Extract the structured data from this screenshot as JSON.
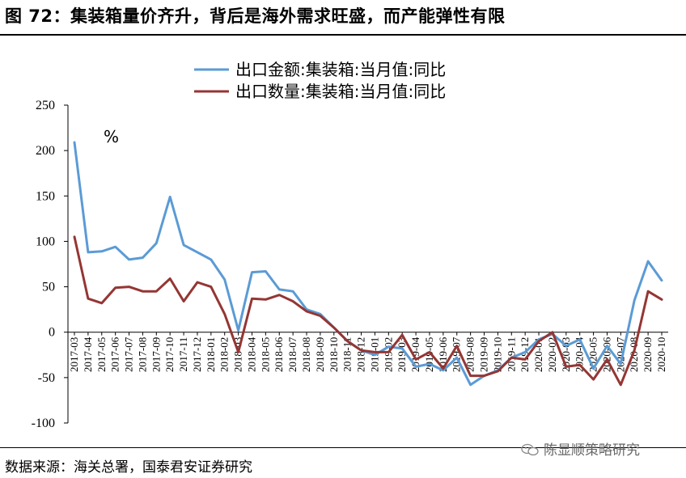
{
  "header": {
    "title": "图 72：集装箱量价齐升，背后是海外需求旺盛，而产能弹性有限"
  },
  "footer": {
    "source": "数据来源：海关总署，国泰君安证券研究",
    "watermark": "陈显顺策略研究"
  },
  "chart_data": {
    "type": "line",
    "unit_label": "%",
    "ylim": [
      -100,
      250
    ],
    "yticks": [
      250,
      200,
      150,
      100,
      50,
      0,
      -50,
      -100
    ],
    "grid": false,
    "legend_position": "top-center",
    "x": [
      "2017-03",
      "2017-04",
      "2017-05",
      "2017-06",
      "2017-07",
      "2017-08",
      "2017-09",
      "2017-10",
      "2017-11",
      "2017-12",
      "2018-01",
      "2018-02",
      "2018-03",
      "2018-04",
      "2018-05",
      "2018-06",
      "2018-07",
      "2018-08",
      "2018-09",
      "2018-10",
      "2018-11",
      "2018-12",
      "2019-01",
      "2019-02",
      "2019-03",
      "2019-04",
      "2019-05",
      "2019-06",
      "2019-07",
      "2019-08",
      "2019-09",
      "2019-10",
      "2019-11",
      "2019-12",
      "2020-01",
      "2020-02",
      "2020-03",
      "2020-04",
      "2020-05",
      "2020-06",
      "2020-07",
      "2020-08",
      "2020-09",
      "2020-10"
    ],
    "xtick_labels": [
      "2017-03",
      "2017-04",
      "2017-05",
      "2017-06",
      "2017-07",
      "2017-08",
      "2017-09",
      "2017-10",
      "2017-11",
      "2017-12",
      "2018-01",
      "2018-02",
      "2018-03",
      "2018-04",
      "2018-05",
      "2018-06",
      "2018-07",
      "2018-08",
      "2018-09",
      "2018-10",
      "2018-11",
      "2018-12",
      "2019-01",
      "2019-02",
      "2019-03",
      "2019-04",
      "2019-05",
      "2019-06",
      "2019-07",
      "2019-08",
      "2019-09",
      "2019-10",
      "2019-11",
      "2019-12",
      "2020-01",
      "2020-02",
      "2020-03",
      "2020-04",
      "2020-05",
      "2020-06",
      "2020-07",
      "2020-08",
      "2020-09",
      "2020-10"
    ],
    "series": [
      {
        "name": "出口金额:集装箱:当月值:同比",
        "color": "#5b9bd5",
        "values": [
          209,
          88,
          89,
          94,
          80,
          82,
          98,
          149,
          96,
          88,
          80,
          58,
          2,
          66,
          67,
          47,
          45,
          25,
          20,
          5,
          -10,
          -20,
          -25,
          -16,
          -18,
          -38,
          -35,
          -42,
          -28,
          -58,
          -48,
          -42,
          -28,
          -22,
          -8,
          -2,
          -15,
          -8,
          -40,
          -15,
          -35,
          35,
          78,
          57
        ]
      },
      {
        "name": "出口数量:集装箱:当月值:同比",
        "color": "#943634",
        "values": [
          105,
          37,
          32,
          49,
          50,
          45,
          45,
          59,
          34,
          55,
          50,
          20,
          -22,
          37,
          36,
          41,
          34,
          23,
          18,
          5,
          -10,
          -20,
          -22,
          -22,
          -3,
          -30,
          -22,
          -40,
          -15,
          -48,
          -48,
          -43,
          -28,
          -30,
          -10,
          0,
          -38,
          -36,
          -52,
          -30,
          -58,
          -20,
          45,
          36
        ]
      }
    ]
  }
}
